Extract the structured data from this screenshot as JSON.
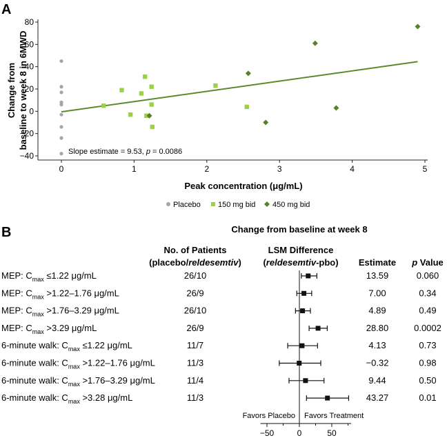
{
  "panel_a": {
    "label": "A",
    "chart_data": {
      "type": "scatter",
      "xlabel": "Peak concentration (μg/mL)",
      "ylabel_lines": [
        "Change from",
        "baseline to week 8 in 6MWD"
      ],
      "xlim": [
        -0.1,
        5
      ],
      "ylim": [
        -42,
        82
      ],
      "x_ticks": [
        0,
        1,
        2,
        3,
        4,
        5
      ],
      "y_ticks": [
        -40,
        -20,
        0,
        20,
        40,
        60,
        80
      ],
      "x_tick_labels": [
        "0",
        "1",
        "2",
        "3",
        "4",
        "5"
      ],
      "y_tick_labels": [
        "−40",
        "−20",
        "0",
        "20",
        "40",
        "60",
        "80"
      ],
      "annotation": "Slope estimate = 9.53, p = 0.0086",
      "annotation_parts": {
        "prefix": "Slope estimate = 9.53, ",
        "italic": "p",
        "suffix": " = 0.0086"
      },
      "regression": {
        "x": [
          0,
          4.9
        ],
        "y": [
          -0.5,
          44.5
        ],
        "color": "#5b8a2b"
      },
      "series": [
        {
          "name": "Placebo",
          "marker": "circle",
          "color": "#a6a6a6",
          "points": [
            [
              0,
              45
            ],
            [
              0,
              22
            ],
            [
              0,
              17
            ],
            [
              0,
              8
            ],
            [
              0,
              6
            ],
            [
              0,
              -3
            ],
            [
              0,
              -14
            ],
            [
              0,
              -24
            ],
            [
              0,
              -38
            ]
          ]
        },
        {
          "name": "150 mg bid",
          "marker": "square",
          "color": "#9bd14a",
          "points": [
            [
              0.58,
              5
            ],
            [
              0.83,
              19
            ],
            [
              0.95,
              -3
            ],
            [
              1.1,
              16
            ],
            [
              1.15,
              31
            ],
            [
              1.17,
              -4
            ],
            [
              1.24,
              22
            ],
            [
              1.24,
              6
            ],
            [
              1.25,
              -14
            ],
            [
              2.12,
              23
            ],
            [
              2.55,
              4
            ]
          ]
        },
        {
          "name": "450 mg bid",
          "marker": "diamond",
          "color": "#5b7f2a",
          "points": [
            [
              1.21,
              -4
            ],
            [
              2.57,
              34
            ],
            [
              2.81,
              -10
            ],
            [
              3.49,
              61
            ],
            [
              3.78,
              3
            ],
            [
              4.9,
              76
            ]
          ]
        }
      ]
    },
    "legend": [
      "Placebo",
      "150 mg bid",
      "450 mg bid"
    ]
  },
  "panel_b": {
    "label": "B",
    "chart_data": {
      "type": "forest",
      "title": "Change from baseline at week 8",
      "col_patients": [
        "No. of Patients",
        "(placebo/reldesemtiv)"
      ],
      "col_patients_parts": {
        "prefix": "(placebo/",
        "italic": "reldesemtiv",
        "suffix": ")"
      },
      "col_lsm": [
        "LSM Difference",
        "(reldesemtiv-pbo)"
      ],
      "col_lsm_parts": {
        "prefix": "(",
        "italic": "reldesemtiv",
        "suffix": "-pbo)"
      },
      "col_estimate": "Estimate",
      "col_pvalue": [
        "p",
        "Value"
      ],
      "xlim": [
        -60,
        80
      ],
      "x_ticks": [
        -50,
        0,
        50
      ],
      "x_tick_labels": [
        "−50",
        "0",
        "50"
      ],
      "favors_left": "Favors Placebo",
      "favors_right": "Favors Treatment",
      "rows": [
        {
          "prefix": "MEP: C",
          "sub": "max",
          "suffix": " ≤1.22 μg/mL",
          "patients": "26/10",
          "estimate": 13.59,
          "estimate_label": "13.59",
          "ci": [
            3,
            27
          ],
          "p": "0.060"
        },
        {
          "prefix": "MEP: C",
          "sub": "max",
          "suffix": " >1.22–1.76 μg/mL",
          "patients": "26/9",
          "estimate": 7.0,
          "estimate_label": "7.00",
          "ci": [
            -4,
            19
          ],
          "p": "0.34"
        },
        {
          "prefix": "MEP: C",
          "sub": "max",
          "suffix": " >1.76–3.29 μg/mL",
          "patients": "26/10",
          "estimate": 4.89,
          "estimate_label": "4.89",
          "ci": [
            -6,
            17
          ],
          "p": "0.49"
        },
        {
          "prefix": "MEP: C",
          "sub": "max",
          "suffix": " >3.29 μg/mL",
          "patients": "26/9",
          "estimate": 28.8,
          "estimate_label": "28.80",
          "ci": [
            15,
            43
          ],
          "p": "0.0002"
        },
        {
          "prefix": "6-minute walk: C",
          "sub": "max",
          "suffix": " ≤1.22 μg/mL",
          "patients": "11/7",
          "estimate": 4.13,
          "estimate_label": "4.13",
          "ci": [
            -18,
            28
          ],
          "p": "0.73"
        },
        {
          "prefix": "6-minute walk: C",
          "sub": "max",
          "suffix": " >1.22–1.76 μg/mL",
          "patients": "11/3",
          "estimate": -0.32,
          "estimate_label": "−0.32",
          "ci": [
            -31,
            33
          ],
          "p": "0.98"
        },
        {
          "prefix": "6-minute walk: C",
          "sub": "max",
          "suffix": " >1.76–3.29 μg/mL",
          "patients": "11/4",
          "estimate": 9.44,
          "estimate_label": "9.44",
          "ci": [
            -16,
            38
          ],
          "p": "0.50"
        },
        {
          "prefix": "6-minute walk: C",
          "sub": "max",
          "suffix": " >3.28 μg/mL",
          "patients": "11/3",
          "estimate": 43.27,
          "estimate_label": "43.27",
          "ci": [
            11,
            76
          ],
          "p": "0.01"
        }
      ]
    }
  }
}
